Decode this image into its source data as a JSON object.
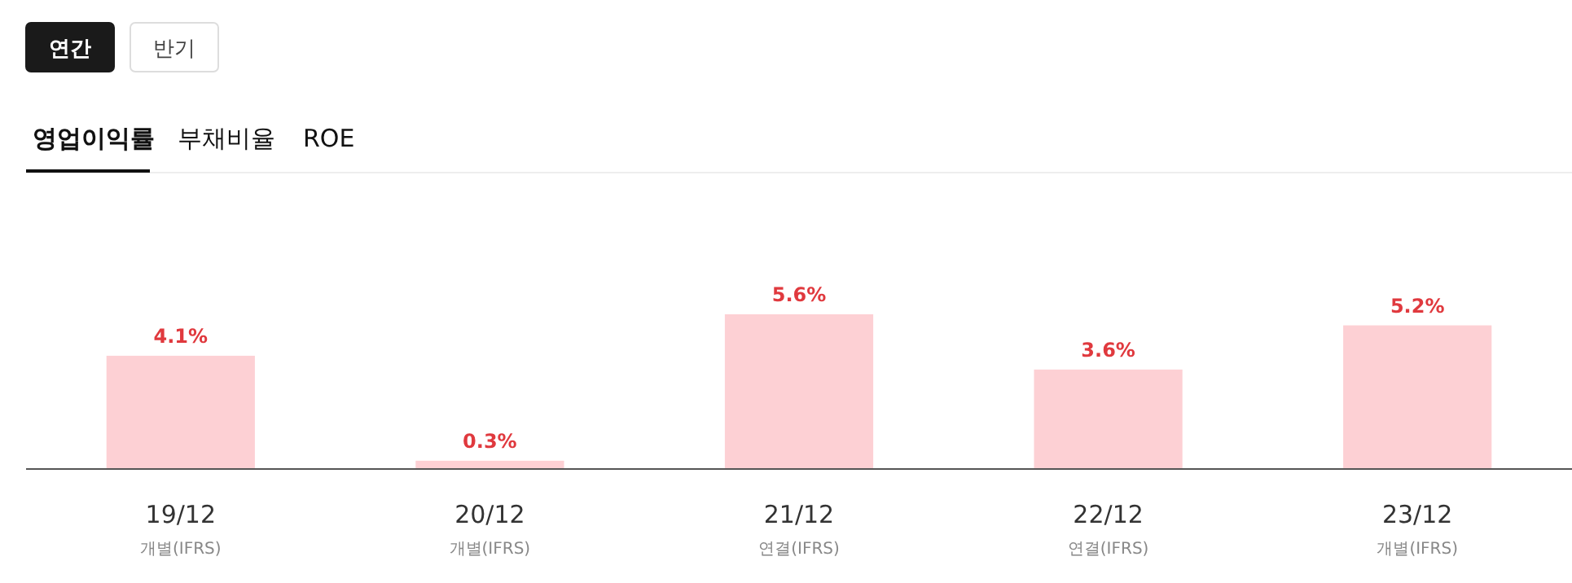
{
  "chart_data": {
    "type": "bar",
    "categories": [
      "19/12\n개별(IFRS)",
      "20/12\n개별(IFRS)",
      "21/12\n연결(IFRS)",
      "22/12\n연결(IFRS)",
      "23/12\n개별(IFRS)"
    ],
    "values": [
      4.1,
      0.3,
      5.6,
      3.6,
      5.2
    ],
    "value_labels": [
      "4.1%",
      "0.3%",
      "5.6%",
      "3.6%",
      "5.2%"
    ],
    "color": "#fdd0d4",
    "annotations": [
      "연간",
      "반기",
      "영업이익률",
      "부채비율",
      "ROE"
    ]
  }
}
